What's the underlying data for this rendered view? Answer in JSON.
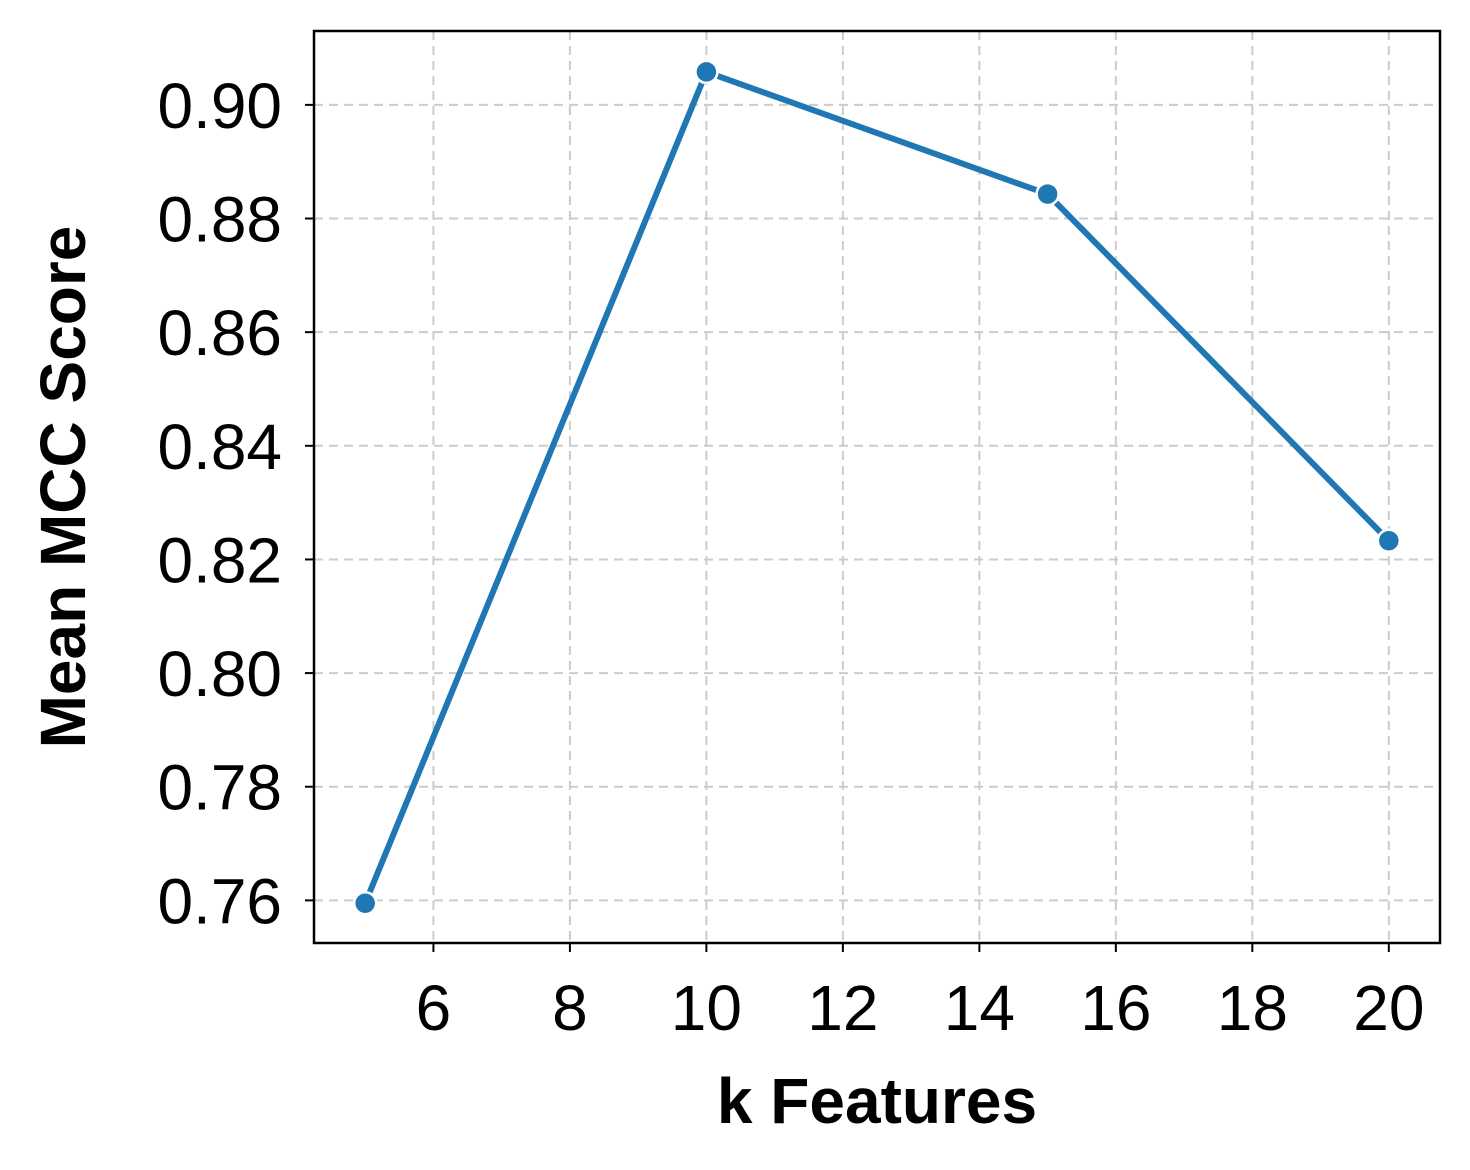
{
  "chart_data": {
    "type": "line",
    "title": "",
    "xlabel": "k Features",
    "ylabel": "Mean MCC Score",
    "x": [
      5,
      10,
      15,
      20
    ],
    "series": [
      {
        "values": [
          0.7595,
          0.9058,
          0.8843,
          0.8233
        ]
      }
    ],
    "xlim": [
      4.25,
      20.75
    ],
    "ylim": [
      0.7525,
      0.913
    ],
    "xticks": [
      6,
      8,
      10,
      12,
      14,
      16,
      18,
      20
    ],
    "yticks": [
      0.76,
      0.78,
      0.8,
      0.82,
      0.84,
      0.86,
      0.88,
      0.9
    ],
    "xtick_labels": [
      "6",
      "8",
      "10",
      "12",
      "14",
      "16",
      "18",
      "20"
    ],
    "ytick_labels": [
      "0.76",
      "0.78",
      "0.80",
      "0.82",
      "0.84",
      "0.86",
      "0.88",
      "0.90"
    ],
    "grid": true,
    "grid_style": "dashed",
    "markers": true,
    "colors": {
      "line": "#1f77b4",
      "grid": "#cccccc",
      "frame": "#000000"
    }
  }
}
